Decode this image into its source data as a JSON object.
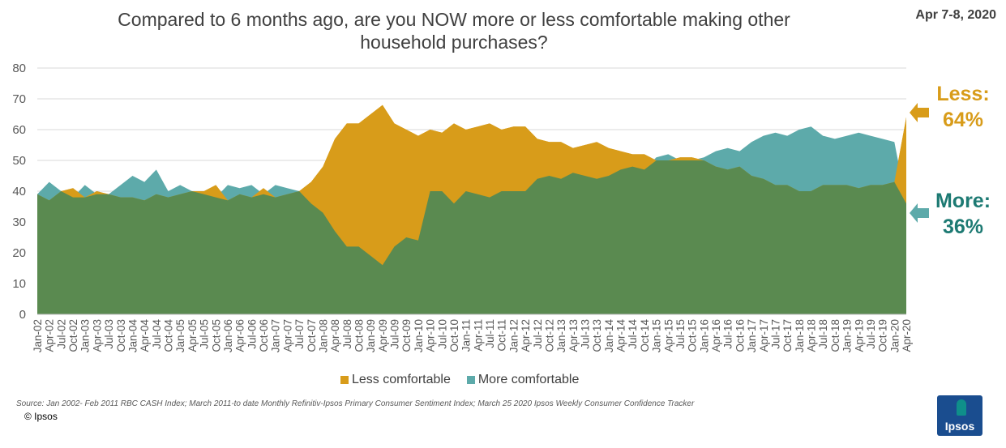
{
  "title": "Compared to 6 months ago, are you NOW more or less comfortable making other household purchases?",
  "date_label": "Apr 7-8, 2020",
  "annotation_less": {
    "label": "Less:",
    "value": "64%"
  },
  "annotation_more": {
    "label": "More:",
    "value": "36%"
  },
  "legend": {
    "less": "Less comfortable",
    "more": "More comfortable"
  },
  "source": "Source: Jan 2002- Feb 2011 RBC CASH Index; March 2011-to date Monthly Refinitiv-Ipsos Primary Consumer Sentiment Index; March 25 2020 Ipsos Weekly Consumer Confidence Tracker",
  "copyright": "© Ipsos",
  "logo_text": "Ipsos",
  "colors": {
    "less": "#D89C1A",
    "more": "#5DAAAA",
    "green": "#5A8A50",
    "less_text": "#D89C1A",
    "more_text": "#1D7A73"
  },
  "chart_data": {
    "type": "area",
    "ylim": [
      0,
      80
    ],
    "yticks": [
      0,
      10,
      20,
      30,
      40,
      50,
      60,
      70,
      80
    ],
    "grid": true,
    "legend_position": "bottom",
    "x_tick_labels": [
      "Jan-02",
      "Apr-02",
      "Jul-02",
      "Oct-02",
      "Jan-03",
      "Apr-03",
      "Jul-03",
      "Oct-03",
      "Jan-04",
      "Apr-04",
      "Jul-04",
      "Oct-04",
      "Jan-05",
      "Apr-05",
      "Jul-05",
      "Oct-05",
      "Jan-06",
      "Apr-06",
      "Jul-06",
      "Oct-06",
      "Jan-07",
      "Apr-07",
      "Jul-07",
      "Oct-07",
      "Jan-08",
      "Apr-08",
      "Jul-08",
      "Oct-08",
      "Jan-09",
      "Apr-09",
      "Jul-09",
      "Oct-09",
      "Jan-10",
      "Apr-10",
      "Jul-10",
      "Oct-10",
      "Jan-11",
      "Apr-11",
      "Jul-11",
      "Oct-11",
      "Jan-12",
      "Apr-12",
      "Jul-12",
      "Oct-12",
      "Jan-13",
      "Apr-13",
      "Jul-13",
      "Oct-13",
      "Jan-14",
      "Apr-14",
      "Jul-14",
      "Oct-14",
      "Jan-15",
      "Apr-15",
      "Jul-15",
      "Oct-15",
      "Jan-16",
      "Apr-16",
      "Jul-16",
      "Oct-16",
      "Jan-17",
      "Apr-17",
      "Jul-17",
      "Oct-17",
      "Jan-18",
      "Apr-18",
      "Jul-18",
      "Oct-18",
      "Jan-19",
      "Apr-19",
      "Jul-19",
      "Oct-19",
      "Jan-20",
      "Apr-20"
    ],
    "series": [
      {
        "name": "Less comfortable",
        "values": [
          39,
          37,
          40,
          41,
          38,
          40,
          39,
          38,
          38,
          37,
          39,
          38,
          39,
          40,
          40,
          42,
          37,
          39,
          38,
          41,
          38,
          39,
          40,
          43,
          48,
          57,
          62,
          62,
          65,
          68,
          62,
          60,
          58,
          60,
          59,
          62,
          60,
          61,
          62,
          60,
          61,
          61,
          57,
          56,
          56,
          54,
          55,
          56,
          54,
          53,
          52,
          52,
          50,
          50,
          51,
          51,
          50,
          48,
          47,
          48,
          45,
          44,
          42,
          42,
          40,
          40,
          42,
          42,
          42,
          41,
          42,
          42,
          43,
          64
        ]
      },
      {
        "name": "More comfortable",
        "values": [
          39,
          43,
          40,
          38,
          42,
          39,
          39,
          42,
          45,
          43,
          47,
          40,
          42,
          40,
          39,
          38,
          42,
          41,
          42,
          39,
          42,
          41,
          40,
          36,
          33,
          27,
          22,
          22,
          19,
          16,
          22,
          25,
          24,
          40,
          40,
          36,
          40,
          39,
          38,
          40,
          40,
          40,
          44,
          45,
          44,
          46,
          45,
          44,
          45,
          47,
          48,
          47,
          51,
          52,
          50,
          50,
          51,
          53,
          54,
          53,
          56,
          58,
          59,
          58,
          60,
          61,
          58,
          57,
          58,
          59,
          58,
          57,
          56,
          36
        ]
      }
    ]
  }
}
